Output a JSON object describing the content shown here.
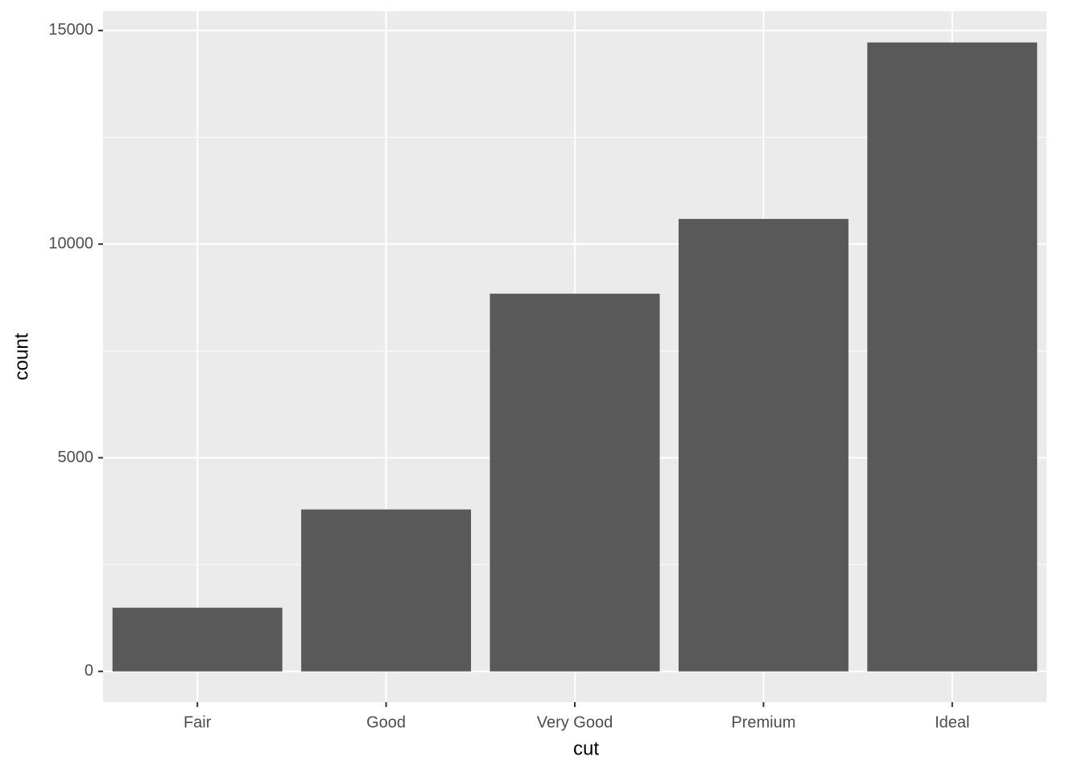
{
  "chart_data": {
    "type": "bar",
    "x_label": "cut",
    "y_label": "count",
    "categories": [
      "Fair",
      "Good",
      "Very Good",
      "Premium",
      "Ideal"
    ],
    "values": [
      1490,
      3790,
      8840,
      10590,
      14720
    ],
    "color": "#595959",
    "ylim": [
      -720,
      15450
    ],
    "yticks": [
      0,
      5000,
      10000,
      15000
    ],
    "minor_yticks": [
      2500,
      7500,
      12500
    ],
    "grid": true
  }
}
